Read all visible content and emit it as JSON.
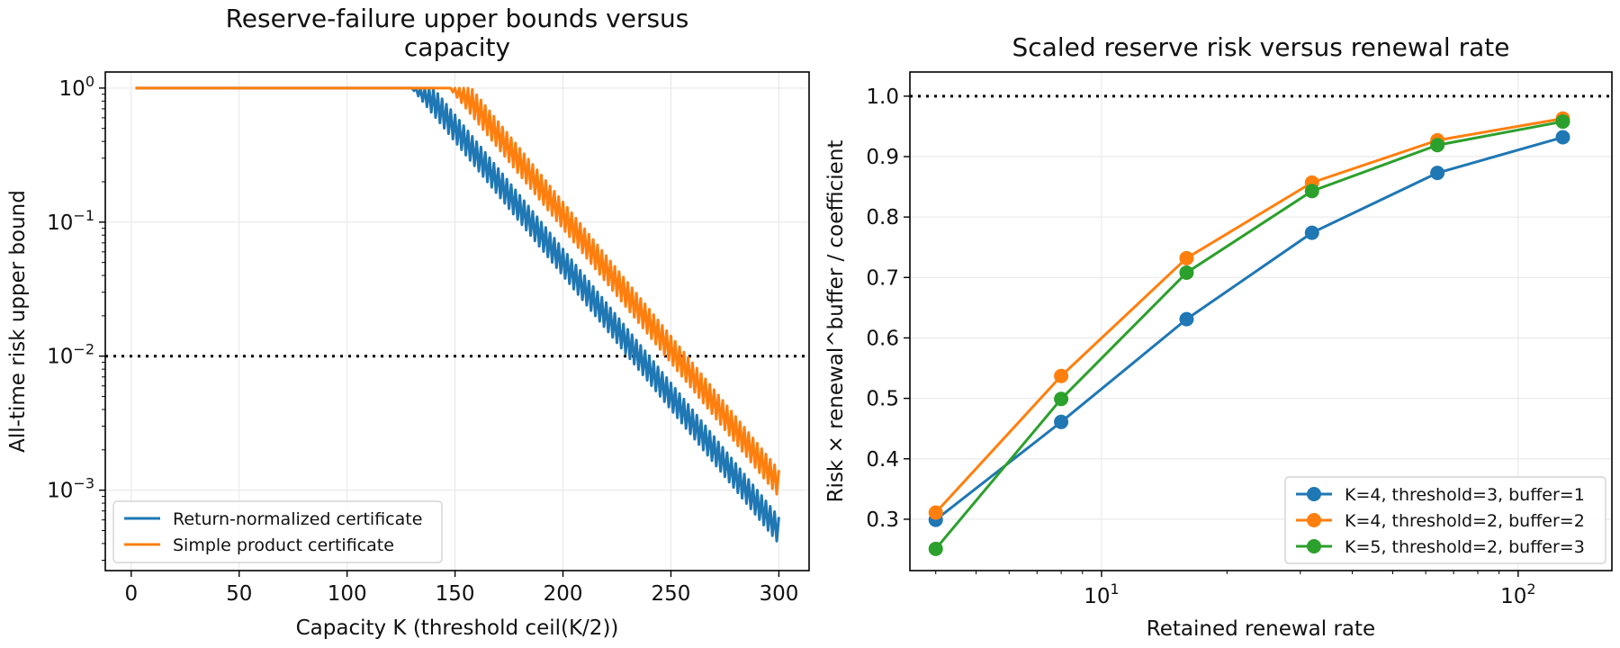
{
  "chart_data": [
    {
      "type": "line",
      "title_line1": "Reserve-failure upper bounds versus",
      "title_line2": "capacity",
      "xlabel": "Capacity K (threshold ceil(K/2))",
      "ylabel": "All-time risk upper bound",
      "xlim": [
        -12,
        314
      ],
      "ylim_log10": [
        -3.6,
        0.12
      ],
      "yscale": "log",
      "grid": true,
      "xticks": [
        0,
        50,
        100,
        150,
        200,
        250,
        300
      ],
      "xtick_labels": [
        "0",
        "50",
        "100",
        "150",
        "200",
        "250",
        "300"
      ],
      "yticks_log10": [
        0,
        -1,
        -2,
        -3
      ],
      "ytick_labels": [
        {
          "base": "10",
          "exp": "0"
        },
        {
          "base": "10",
          "exp": "−1"
        },
        {
          "base": "10",
          "exp": "−2"
        },
        {
          "base": "10",
          "exp": "−3"
        }
      ],
      "reference_line": {
        "y": 0.01,
        "style": "dotted",
        "color": "#000000"
      },
      "legend_position": "lower-left",
      "series": [
        {
          "name": "Return-normalized certificate",
          "color": "#1f77b4",
          "x_range": [
            2,
            300
          ],
          "y_cap": 1.0,
          "y_even": {
            "log10_intercept": 2.8,
            "log10_slope": -0.02
          },
          "y_odd": {
            "log10_intercept": 2.6,
            "log10_slope": -0.02
          }
        },
        {
          "name": "Simple product certificate",
          "color": "#ff7f0e",
          "x_range": [
            2,
            300
          ],
          "y_cap": 1.0,
          "y_even": {
            "log10_intercept": 3.15,
            "log10_slope": -0.02
          },
          "y_odd": {
            "log10_intercept": 2.95,
            "log10_slope": -0.02
          }
        }
      ]
    },
    {
      "type": "line",
      "title": "Scaled reserve risk versus renewal rate",
      "xlabel": "Retained renewal rate",
      "ylabel": "Risk × renewal^buffer / coefficient",
      "xscale": "log",
      "xlim_log10": [
        0.54,
        2.225
      ],
      "ylim": [
        0.215,
        1.04
      ],
      "grid": true,
      "xticks_log10": [
        1,
        2
      ],
      "xtick_labels": [
        {
          "base": "10",
          "exp": "1"
        },
        {
          "base": "10",
          "exp": "2"
        }
      ],
      "yticks": [
        0.3,
        0.4,
        0.5,
        0.6,
        0.7,
        0.8,
        0.9,
        1.0
      ],
      "ytick_labels": [
        "0.3",
        "0.4",
        "0.5",
        "0.6",
        "0.7",
        "0.8",
        "0.9",
        "1.0"
      ],
      "reference_line": {
        "y": 1.0,
        "style": "dotted",
        "color": "#000000"
      },
      "legend_position": "lower-right",
      "x": [
        4,
        8,
        16,
        32,
        64,
        128
      ],
      "series": [
        {
          "name": "K=4, threshold=3, buffer=1",
          "color": "#1f77b4",
          "values": [
            0.299,
            0.461,
            0.631,
            0.774,
            0.873,
            0.932
          ]
        },
        {
          "name": "K=4, threshold=2, buffer=2",
          "color": "#ff7f0e",
          "values": [
            0.311,
            0.537,
            0.732,
            0.857,
            0.927,
            0.963
          ]
        },
        {
          "name": "K=5, threshold=2, buffer=3",
          "color": "#2ca02c",
          "values": [
            0.251,
            0.499,
            0.708,
            0.843,
            0.919,
            0.958
          ]
        }
      ]
    }
  ]
}
